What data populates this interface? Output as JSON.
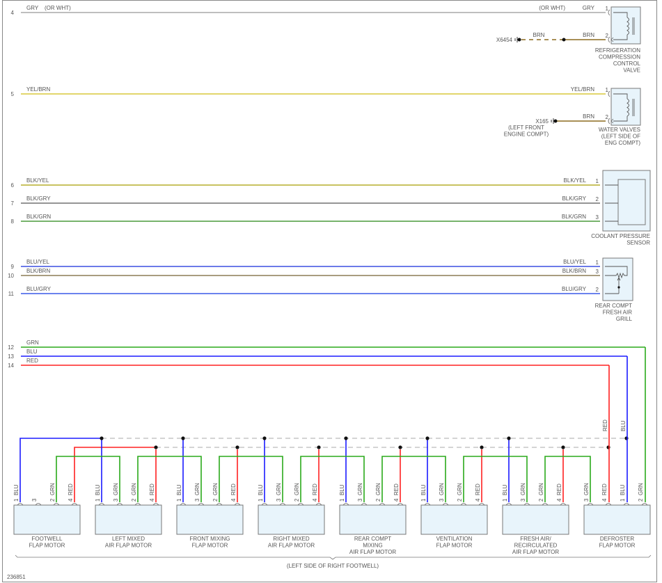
{
  "figure_id": "236851",
  "colors": {
    "GRY": "#a8a8a8",
    "YEL/BRN": "#d8c83a",
    "BRN": "#8b6a1e",
    "BLK/YEL": "#b5ad2c",
    "BLK/GRY": "#707070",
    "BLK/GRN": "#4a9a3a",
    "BLU/YEL": "#3b4fe0",
    "BLK/BRN": "#8b7b55",
    "BLU/GRY": "#3a5ae8",
    "GRN": "#2aaa1a",
    "BLU": "#1a1aff",
    "RED": "#ff2020",
    "component_fill": "#e8f4fb",
    "component_stroke": "#777777",
    "bus_dash": "#aaaaaa"
  },
  "wires": [
    {
      "num": "4",
      "left_label": "GRY",
      "left_note": "(OR WHT)",
      "right_label": "GRY",
      "right_note": "(OR WHT)",
      "pin": "1",
      "color_key": "GRY"
    },
    {
      "num": "5",
      "left_label": "YEL/BRN",
      "right_label": "YEL/BRN",
      "pin": "1",
      "color_key": "YEL/BRN"
    },
    {
      "num": "6",
      "left_label": "BLK/YEL",
      "right_label": "BLK/YEL",
      "pin": "1",
      "color_key": "BLK/YEL"
    },
    {
      "num": "7",
      "left_label": "BLK/GRY",
      "right_label": "BLK/GRY",
      "pin": "2",
      "color_key": "BLK/GRY"
    },
    {
      "num": "8",
      "left_label": "BLK/GRN",
      "right_label": "BLK/GRN",
      "pin": "3",
      "color_key": "BLK/GRN"
    },
    {
      "num": "9",
      "left_label": "BLU/YEL",
      "right_label": "BLU/YEL",
      "pin": "1",
      "color_key": "BLU/YEL"
    },
    {
      "num": "10",
      "left_label": "BLK/BRN",
      "right_label": "BLK/BRN",
      "pin": "3",
      "color_key": "BLK/BRN"
    },
    {
      "num": "11",
      "left_label": "BLU/GRY",
      "right_label": "BLU/GRY",
      "pin": "2",
      "color_key": "BLU/GRY"
    },
    {
      "num": "12",
      "left_label": "GRN",
      "color_key": "GRN"
    },
    {
      "num": "13",
      "left_label": "BLU",
      "color_key": "BLU"
    },
    {
      "num": "14",
      "left_label": "RED",
      "color_key": "RED"
    }
  ],
  "components": {
    "refrigeration_valve": {
      "label": [
        "REFRIGERATION",
        "COMPRESSION",
        "CONTROL",
        "VALVE"
      ],
      "ground": "X6454",
      "ground_wire": "BRN",
      "pin2_label": "BRN",
      "pin2": "2"
    },
    "water_valves": {
      "label": [
        "WATER VALVES",
        "(LEFT SIDE OF",
        "ENG COMPT)"
      ],
      "ground": "X165",
      "ground_note": [
        "(LEFT FRONT",
        "ENGINE COMPT)"
      ],
      "pin2_label": "BRN",
      "pin2": "2"
    },
    "coolant_sensor": {
      "label": [
        "COOLANT PRESSURE",
        "SENSOR"
      ]
    },
    "rear_grill": {
      "label": [
        "REAR COMPT",
        "FRESH AIR",
        "GRILL"
      ]
    }
  },
  "defroster_riser_labels": [
    "RED",
    "BLU"
  ],
  "motors": [
    {
      "name": [
        "FOOTWELL",
        "FLAP MOTOR"
      ],
      "pins": [
        {
          "num": "1",
          "label": "BLU"
        },
        {
          "num": "3",
          "label": ""
        },
        {
          "num": "2",
          "label": "GRN"
        },
        {
          "num": "4",
          "label": "RED"
        }
      ]
    },
    {
      "name": [
        "LEFT MIXED",
        "AIR FLAP MOTOR"
      ],
      "pins": [
        {
          "num": "1",
          "label": "BLU"
        },
        {
          "num": "3",
          "label": "GRN"
        },
        {
          "num": "2",
          "label": "GRN"
        },
        {
          "num": "4",
          "label": "RED"
        }
      ]
    },
    {
      "name": [
        "FRONT MIXING",
        "FLAP MOTOR"
      ],
      "pins": [
        {
          "num": "1",
          "label": "BLU"
        },
        {
          "num": "3",
          "label": "GRN"
        },
        {
          "num": "2",
          "label": "GRN"
        },
        {
          "num": "4",
          "label": "RED"
        }
      ]
    },
    {
      "name": [
        "RIGHT MIXED",
        "AIR FLAP MOTOR"
      ],
      "pins": [
        {
          "num": "1",
          "label": "BLU"
        },
        {
          "num": "3",
          "label": "GRN"
        },
        {
          "num": "2",
          "label": "GRN"
        },
        {
          "num": "4",
          "label": "RED"
        }
      ]
    },
    {
      "name": [
        "REAR COMPT",
        "MIXING",
        "AIR FLAP MOTOR"
      ],
      "pins": [
        {
          "num": "1",
          "label": "BLU"
        },
        {
          "num": "3",
          "label": "GRN"
        },
        {
          "num": "2",
          "label": "GRN"
        },
        {
          "num": "4",
          "label": "RED"
        }
      ]
    },
    {
      "name": [
        "VENTILATION",
        "FLAP MOTOR"
      ],
      "pins": [
        {
          "num": "1",
          "label": "BLU"
        },
        {
          "num": "3",
          "label": "GRN"
        },
        {
          "num": "2",
          "label": "GRN"
        },
        {
          "num": "4",
          "label": "RED"
        }
      ]
    },
    {
      "name": [
        "FRESH AIR/",
        "RECIRCULATED",
        "AIR FLAP MOTOR"
      ],
      "pins": [
        {
          "num": "1",
          "label": "BLU"
        },
        {
          "num": "3",
          "label": "GRN"
        },
        {
          "num": "2",
          "label": "GRN"
        },
        {
          "num": "4",
          "label": "RED"
        }
      ]
    },
    {
      "name": [
        "DEFROSTER",
        "FLAP MOTOR"
      ],
      "pins": [
        {
          "num": "3",
          "label": "GRN"
        },
        {
          "num": "4",
          "label": "RED"
        },
        {
          "num": "1",
          "label": "BLU"
        },
        {
          "num": "2",
          "label": "GRN"
        }
      ]
    }
  ],
  "location_note": "(LEFT SIDE OF RIGHT FOOTWELL)"
}
